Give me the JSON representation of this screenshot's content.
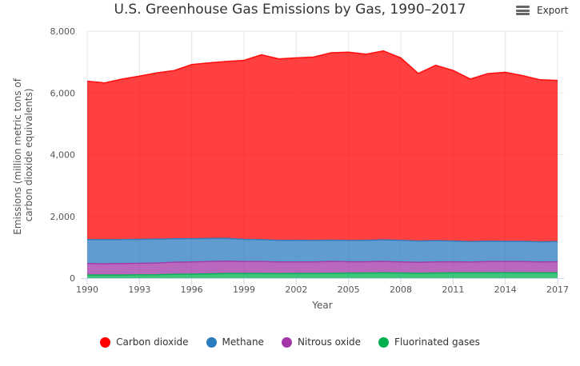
{
  "header": {
    "title": "U.S. Greenhouse Gas Emissions by Gas, 1990–2017",
    "export_label": "Export",
    "export_icon": "hamburger-menu-icon"
  },
  "chart_data": {
    "type": "area",
    "stacked": true,
    "title": "U.S. Greenhouse Gas Emissions by Gas, 1990–2017",
    "xlabel": "Year",
    "ylabel": "Emissions (million metric tons of carbon dioxide equivalents)",
    "ylabel_lines": [
      "Emissions (million metric tons of",
      "carbon dioxide equivalents)"
    ],
    "xlim": [
      1990,
      2017
    ],
    "ylim": [
      0,
      8000
    ],
    "x_ticks": [
      "1990",
      "1993",
      "1996",
      "1999",
      "2002",
      "2005",
      "2008",
      "2011",
      "2014",
      "2017"
    ],
    "y_ticks": [
      "0",
      "2,000",
      "4,000",
      "6,000",
      "8,000"
    ],
    "y_tick_values": [
      0,
      2000,
      4000,
      6000,
      8000
    ],
    "grid": true,
    "legend_position": "bottom",
    "x": [
      1990,
      1991,
      1992,
      1993,
      1994,
      1995,
      1996,
      1997,
      1998,
      1999,
      2000,
      2001,
      2002,
      2003,
      2004,
      2005,
      2006,
      2007,
      2008,
      2009,
      2010,
      2011,
      2012,
      2013,
      2014,
      2015,
      2016,
      2017
    ],
    "series": [
      {
        "name": "Carbon dioxide",
        "color": "#ff0000",
        "values": [
          5130,
          5080,
          5200,
          5290,
          5390,
          5450,
          5640,
          5690,
          5730,
          5800,
          5990,
          5880,
          5910,
          5940,
          6070,
          6100,
          6030,
          6120,
          5910,
          5430,
          5680,
          5530,
          5270,
          5430,
          5480,
          5370,
          5250,
          5220
        ]
      },
      {
        "name": "Methane",
        "color": "#2b7bbf",
        "values": [
          780,
          780,
          780,
          775,
          770,
          760,
          755,
          750,
          740,
          720,
          710,
          700,
          700,
          695,
          690,
          690,
          695,
          700,
          700,
          690,
          690,
          670,
          660,
          660,
          655,
          655,
          650,
          655
        ]
      },
      {
        "name": "Nitrous oxide",
        "color": "#a336a8",
        "values": [
          370,
          365,
          370,
          375,
          380,
          390,
          395,
          395,
          400,
          385,
          385,
          380,
          375,
          375,
          385,
          370,
          365,
          370,
          360,
          355,
          360,
          360,
          350,
          360,
          360,
          360,
          355,
          360
        ]
      },
      {
        "name": "Fluorinated gases",
        "color": "#00b050",
        "values": [
          100,
          100,
          100,
          105,
          110,
          125,
          130,
          140,
          150,
          150,
          150,
          145,
          150,
          150,
          155,
          160,
          165,
          170,
          165,
          155,
          165,
          170,
          170,
          175,
          175,
          175,
          170,
          170
        ]
      }
    ]
  },
  "legend": {
    "items": [
      {
        "label": "Carbon dioxide",
        "color": "#ff0000"
      },
      {
        "label": "Methane",
        "color": "#2b7bbf"
      },
      {
        "label": "Nitrous oxide",
        "color": "#a336a8"
      },
      {
        "label": "Fluorinated gases",
        "color": "#00b050"
      }
    ]
  }
}
